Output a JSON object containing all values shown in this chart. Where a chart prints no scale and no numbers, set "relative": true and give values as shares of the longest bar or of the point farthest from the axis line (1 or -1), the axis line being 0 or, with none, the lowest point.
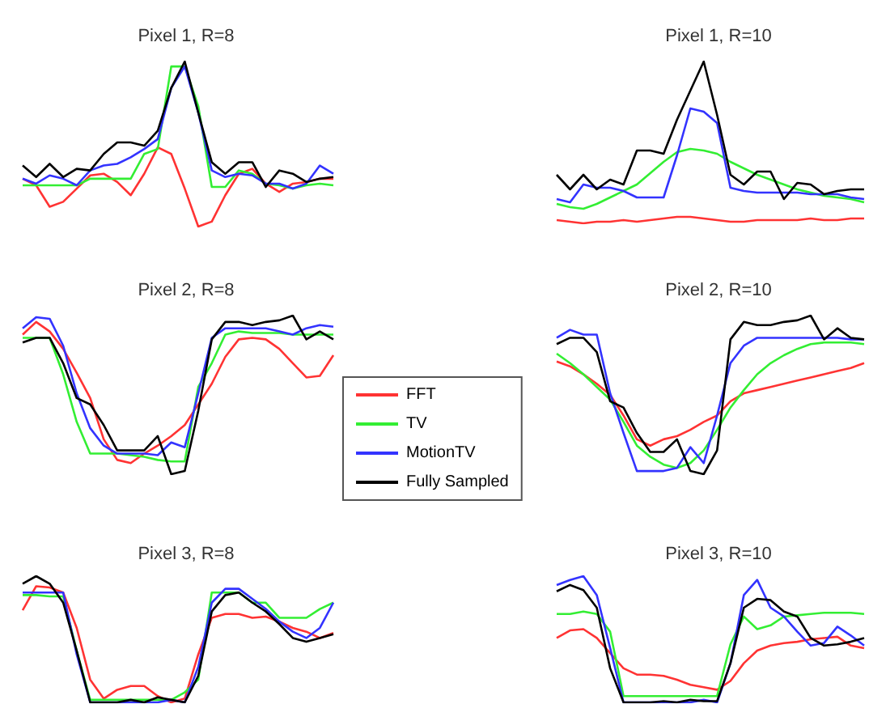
{
  "chart_data": [
    {
      "type": "line",
      "title": "Pixel 1, R=8",
      "relative": true,
      "marker": "none",
      "legend": false,
      "categories": [
        null,
        null,
        null,
        null,
        null,
        null,
        null,
        null,
        null,
        null,
        null,
        null,
        null,
        null,
        null,
        null,
        null,
        null,
        null,
        null,
        null,
        null,
        null,
        null
      ],
      "series": [
        {
          "color": "#ff3333",
          "values": [
            0.29,
            0.25,
            0.12,
            0.15,
            0.23,
            0.31,
            0.32,
            0.27,
            0.19,
            0.32,
            0.48,
            0.44,
            0.23,
            0,
            0.03,
            0.19,
            0.32,
            0.35,
            0.26,
            0.21,
            0.26,
            0.27,
            0.29,
            0.29
          ]
        },
        {
          "color": "#33ee33",
          "values": [
            0.25,
            0.25,
            0.25,
            0.25,
            0.25,
            0.29,
            0.29,
            0.29,
            0.29,
            0.44,
            0.47,
            0.97,
            0.97,
            0.73,
            0.24,
            0.24,
            0.34,
            0.32,
            0.26,
            0.25,
            0.23,
            0.25,
            0.26,
            0.25
          ]
        },
        {
          "color": "#3333ff",
          "values": [
            0.29,
            0.26,
            0.31,
            0.29,
            0.25,
            0.34,
            0.37,
            0.38,
            0.42,
            0.47,
            0.53,
            0.84,
            0.97,
            0.69,
            0.34,
            0.3,
            0.32,
            0.31,
            0.26,
            0.26,
            0.23,
            0.26,
            0.37,
            0.32
          ]
        },
        {
          "color": "#000000",
          "values": [
            0.37,
            0.3,
            0.38,
            0.3,
            0.35,
            0.34,
            0.44,
            0.51,
            0.51,
            0.49,
            0.58,
            0.84,
            1,
            0.69,
            0.39,
            0.32,
            0.39,
            0.39,
            0.24,
            0.34,
            0.32,
            0.27,
            0.29,
            0.3
          ]
        }
      ]
    },
    {
      "type": "line",
      "title": "Pixel 1, R=10",
      "relative": true,
      "marker": "none",
      "legend": false,
      "categories": [
        null,
        null,
        null,
        null,
        null,
        null,
        null,
        null,
        null,
        null,
        null,
        null,
        null,
        null,
        null,
        null,
        null,
        null,
        null,
        null,
        null,
        null,
        null,
        null
      ],
      "series": [
        {
          "color": "#ff3333",
          "values": [
            0.02,
            0.01,
            0,
            0.01,
            0.01,
            0.02,
            0.01,
            0.02,
            0.03,
            0.04,
            0.04,
            0.03,
            0.02,
            0.01,
            0.01,
            0.02,
            0.02,
            0.02,
            0.02,
            0.03,
            0.02,
            0.02,
            0.03,
            0.03
          ]
        },
        {
          "color": "#33ee33",
          "values": [
            0.12,
            0.1,
            0.09,
            0.12,
            0.16,
            0.2,
            0.24,
            0.31,
            0.38,
            0.44,
            0.46,
            0.45,
            0.43,
            0.38,
            0.34,
            0.3,
            0.27,
            0.24,
            0.21,
            0.19,
            0.17,
            0.16,
            0.15,
            0.13
          ]
        },
        {
          "color": "#3333ff",
          "values": [
            0.15,
            0.13,
            0.24,
            0.22,
            0.22,
            0.2,
            0.16,
            0.16,
            0.16,
            0.42,
            0.71,
            0.69,
            0.62,
            0.22,
            0.2,
            0.19,
            0.19,
            0.19,
            0.19,
            0.18,
            0.18,
            0.18,
            0.16,
            0.15
          ]
        },
        {
          "color": "#000000",
          "values": [
            0.3,
            0.21,
            0.3,
            0.21,
            0.27,
            0.24,
            0.45,
            0.45,
            0.43,
            0.64,
            0.82,
            1,
            0.67,
            0.3,
            0.24,
            0.32,
            0.32,
            0.15,
            0.25,
            0.24,
            0.18,
            0.2,
            0.21,
            0.21
          ]
        }
      ]
    },
    {
      "type": "line",
      "title": "Pixel 2, R=8",
      "relative": true,
      "marker": "none",
      "legend": "right",
      "categories": [
        null,
        null,
        null,
        null,
        null,
        null,
        null,
        null,
        null,
        null,
        null,
        null,
        null,
        null,
        null,
        null,
        null,
        null,
        null,
        null,
        null,
        null,
        null,
        null
      ],
      "series": [
        {
          "name": "FFT",
          "color": "#ff3333",
          "values": [
            0.88,
            0.96,
            0.9,
            0.79,
            0.64,
            0.48,
            0.22,
            0.09,
            0.07,
            0.13,
            0.18,
            0.24,
            0.31,
            0.44,
            0.57,
            0.74,
            0.85,
            0.86,
            0.85,
            0.79,
            0.7,
            0.61,
            0.62,
            0.75
          ]
        },
        {
          "name": "TV",
          "color": "#33ee33",
          "values": [
            0.86,
            0.86,
            0.86,
            0.63,
            0.33,
            0.13,
            0.13,
            0.13,
            0.12,
            0.11,
            0.09,
            0.08,
            0.08,
            0.55,
            0.7,
            0.88,
            0.9,
            0.89,
            0.89,
            0.89,
            0.88,
            0.88,
            0.88,
            0.88
          ]
        },
        {
          "name": "MotionTV",
          "color": "#3333ff",
          "values": [
            0.92,
            0.99,
            0.98,
            0.81,
            0.51,
            0.29,
            0.18,
            0.13,
            0.13,
            0.13,
            0.12,
            0.2,
            0.17,
            0.51,
            0.86,
            0.92,
            0.92,
            0.92,
            0.92,
            0.9,
            0.88,
            0.92,
            0.94,
            0.93
          ]
        },
        {
          "name": "Fully Sampled",
          "color": "#000000",
          "values": [
            0.83,
            0.86,
            0.86,
            0.7,
            0.48,
            0.44,
            0.31,
            0.15,
            0.15,
            0.15,
            0.24,
            0,
            0.02,
            0.4,
            0.85,
            0.96,
            0.96,
            0.94,
            0.96,
            0.97,
            1,
            0.85,
            0.9,
            0.85
          ]
        }
      ]
    },
    {
      "type": "line",
      "title": "Pixel 2, R=10",
      "relative": true,
      "marker": "none",
      "legend": false,
      "categories": [
        null,
        null,
        null,
        null,
        null,
        null,
        null,
        null,
        null,
        null,
        null,
        null,
        null,
        null,
        null,
        null,
        null,
        null,
        null,
        null,
        null,
        null,
        null,
        null
      ],
      "series": [
        {
          "color": "#ff3333",
          "values": [
            0.71,
            0.68,
            0.63,
            0.57,
            0.5,
            0.37,
            0.22,
            0.18,
            0.22,
            0.24,
            0.28,
            0.33,
            0.37,
            0.46,
            0.51,
            0.53,
            0.55,
            0.57,
            0.59,
            0.61,
            0.63,
            0.65,
            0.67,
            0.7
          ]
        },
        {
          "color": "#33ee33",
          "values": [
            0.76,
            0.7,
            0.63,
            0.55,
            0.47,
            0.33,
            0.18,
            0.11,
            0.06,
            0.04,
            0.07,
            0.15,
            0.28,
            0.42,
            0.53,
            0.63,
            0.7,
            0.75,
            0.79,
            0.82,
            0.83,
            0.83,
            0.83,
            0.82
          ]
        },
        {
          "color": "#3333ff",
          "values": [
            0.86,
            0.91,
            0.88,
            0.88,
            0.51,
            0.26,
            0.02,
            0.02,
            0.02,
            0.04,
            0.17,
            0.07,
            0.37,
            0.7,
            0.81,
            0.86,
            0.86,
            0.86,
            0.86,
            0.86,
            0.86,
            0.86,
            0.85,
            0.85
          ]
        },
        {
          "color": "#000000",
          "values": [
            0.82,
            0.86,
            0.86,
            0.77,
            0.46,
            0.42,
            0.26,
            0.14,
            0.14,
            0.22,
            0.02,
            0,
            0.15,
            0.85,
            0.96,
            0.94,
            0.94,
            0.96,
            0.97,
            1,
            0.85,
            0.92,
            0.86,
            0.85
          ]
        }
      ]
    },
    {
      "type": "line",
      "title": "Pixel 3, R=8",
      "relative": true,
      "marker": "none",
      "legend": false,
      "categories": [
        null,
        null,
        null,
        null,
        null,
        null,
        null,
        null,
        null,
        null,
        null,
        null,
        null,
        null,
        null,
        null,
        null,
        null,
        null,
        null,
        null,
        null,
        null,
        null
      ],
      "series": [
        {
          "color": "#ff3333",
          "values": [
            0.73,
            0.92,
            0.91,
            0.87,
            0.59,
            0.18,
            0.03,
            0.1,
            0.13,
            0.13,
            0.05,
            0,
            0.03,
            0.38,
            0.67,
            0.7,
            0.7,
            0.67,
            0.68,
            0.64,
            0.59,
            0.56,
            0.51,
            0.55
          ]
        },
        {
          "color": "#33ee33",
          "values": [
            0.85,
            0.85,
            0.84,
            0.84,
            0.41,
            0.02,
            0.02,
            0.02,
            0.02,
            0.02,
            0.02,
            0.02,
            0.08,
            0.18,
            0.87,
            0.87,
            0.87,
            0.79,
            0.79,
            0.67,
            0.67,
            0.67,
            0.74,
            0.79
          ]
        },
        {
          "color": "#3333ff",
          "values": [
            0.87,
            0.87,
            0.87,
            0.87,
            0.38,
            0,
            0,
            0,
            0,
            0,
            0,
            0.02,
            0,
            0.28,
            0.79,
            0.9,
            0.9,
            0.82,
            0.74,
            0.64,
            0.56,
            0.51,
            0.59,
            0.79
          ]
        },
        {
          "color": "#000000",
          "values": [
            0.94,
            1,
            0.94,
            0.79,
            0.41,
            0,
            0,
            0,
            0.02,
            0,
            0.04,
            0.02,
            0,
            0.21,
            0.72,
            0.85,
            0.87,
            0.79,
            0.72,
            0.62,
            0.51,
            0.48,
            0.51,
            0.54
          ]
        }
      ]
    },
    {
      "type": "line",
      "title": "Pixel 3, R=10",
      "relative": true,
      "marker": "none",
      "legend": false,
      "categories": [
        null,
        null,
        null,
        null,
        null,
        null,
        null,
        null,
        null,
        null,
        null,
        null,
        null,
        null,
        null,
        null,
        null,
        null,
        null,
        null,
        null,
        null,
        null,
        null
      ],
      "series": [
        {
          "color": "#ff3333",
          "values": [
            0.51,
            0.57,
            0.58,
            0.51,
            0.39,
            0.27,
            0.22,
            0.22,
            0.21,
            0.18,
            0.14,
            0.12,
            0.1,
            0.17,
            0.31,
            0.41,
            0.45,
            0.47,
            0.48,
            0.5,
            0.51,
            0.52,
            0.45,
            0.43
          ]
        },
        {
          "color": "#33ee33",
          "values": [
            0.7,
            0.7,
            0.72,
            0.7,
            0.56,
            0.05,
            0.05,
            0.05,
            0.05,
            0.05,
            0.05,
            0.05,
            0.05,
            0.46,
            0.68,
            0.58,
            0.61,
            0.68,
            0.69,
            0.7,
            0.71,
            0.71,
            0.71,
            0.7
          ]
        },
        {
          "color": "#3333ff",
          "values": [
            0.93,
            0.97,
            1,
            0.85,
            0.43,
            0,
            0,
            0,
            0,
            0,
            0,
            0.02,
            0,
            0.31,
            0.85,
            0.97,
            0.75,
            0.68,
            0.56,
            0.45,
            0.47,
            0.6,
            0.53,
            0.45
          ]
        },
        {
          "color": "#000000",
          "values": [
            0.88,
            0.93,
            0.89,
            0.75,
            0.27,
            0,
            0,
            0,
            0.01,
            0,
            0.02,
            0.01,
            0.01,
            0.31,
            0.75,
            0.82,
            0.81,
            0.72,
            0.68,
            0.51,
            0.45,
            0.46,
            0.48,
            0.51
          ]
        }
      ]
    }
  ]
}
